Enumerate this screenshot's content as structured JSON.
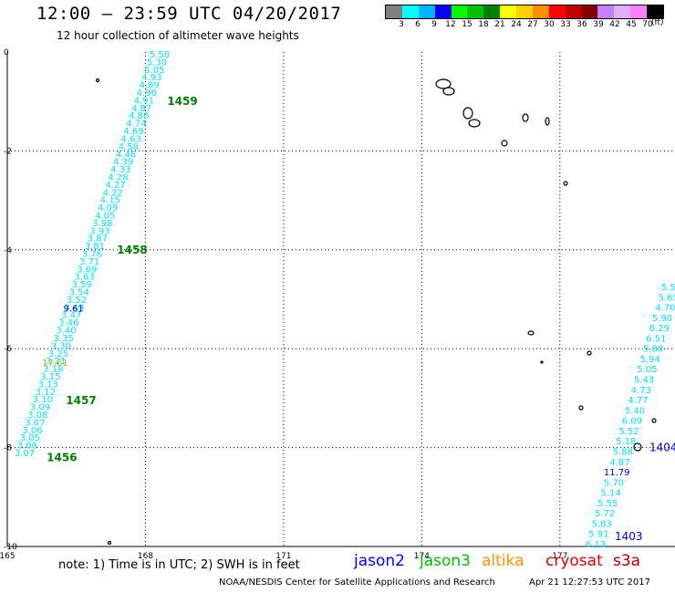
{
  "header": {
    "title": "12:00 – 23:59 UTC 04/20/2017",
    "subtitle": "12 hour collection of altimeter wave heights"
  },
  "legend": {
    "unit": "(ft)",
    "bins": [
      {
        "label": "3",
        "color": "#808080"
      },
      {
        "label": "6",
        "color": "#00ffff"
      },
      {
        "label": "9",
        "color": "#00b4ff"
      },
      {
        "label": "12",
        "color": "#0000ff"
      },
      {
        "label": "15",
        "color": "#00ff00"
      },
      {
        "label": "18",
        "color": "#00c000"
      },
      {
        "label": "21",
        "color": "#008000"
      },
      {
        "label": "24",
        "color": "#ffff00"
      },
      {
        "label": "27",
        "color": "#ffd000"
      },
      {
        "label": "30",
        "color": "#ff9000"
      },
      {
        "label": "33",
        "color": "#ff0000"
      },
      {
        "label": "36",
        "color": "#c00000"
      },
      {
        "label": "39",
        "color": "#800000"
      },
      {
        "label": "42",
        "color": "#c080ff"
      },
      {
        "label": "45",
        "color": "#e0b0ff"
      },
      {
        "label": "70",
        "color": "#ff80ff"
      },
      {
        "label": "",
        "color": "#000000"
      }
    ]
  },
  "map": {
    "lon_ticks": [
      "165",
      "168",
      "171",
      "174",
      "177"
    ],
    "lat_ticks": [
      "0",
      "-2",
      "-4",
      "-6",
      "-8",
      "-10"
    ],
    "lon_range": [
      165,
      179.5
    ],
    "lat_range": [
      0,
      -10
    ]
  },
  "track_west": {
    "color": "#00e0ff",
    "values": [
      "5.58",
      "5.30",
      "5.05",
      "4.93",
      "4.89",
      "4.96",
      "4.91",
      "4.87",
      "4.80",
      "4.74",
      "4.69",
      "4.63",
      "4.58",
      "4.46",
      "4.39",
      "4.33",
      "4.28",
      "4.27",
      "4.22",
      "4.15",
      "4.09",
      "4.05",
      "3.98",
      "3.93",
      "3.87",
      "3.81",
      "3.76",
      "3.71",
      "3.69",
      "3.63",
      "3.59",
      "3.54",
      "3.52",
      "3.49",
      "3.47",
      "3.46",
      "3.40",
      "3.35",
      "3.30",
      "3.25",
      "3.21",
      "3.18",
      "3.15",
      "3.13",
      "3.12",
      "3.10",
      "3.09",
      "3.08",
      "3.07",
      "3.06",
      "3.05",
      "3.06",
      "3.07"
    ],
    "specials": [
      {
        "value": "9.61",
        "color": "#0000cc",
        "lat": -5.25
      },
      {
        "value": "17.61",
        "color": "#b0b000",
        "lat": -6.35
      }
    ],
    "times": [
      {
        "value": "1459",
        "lat": -1.0
      },
      {
        "value": "1458",
        "lat": -4.0
      },
      {
        "value": "1457",
        "lat": -7.05
      },
      {
        "value": "1456",
        "lat": -8.2
      }
    ]
  },
  "track_east": {
    "color": "#00e0ff",
    "values": [
      "5.55",
      "5.65",
      "4.70",
      "5.90",
      "6.29",
      "6.51",
      "5.88",
      "5.94",
      "5.05",
      "5.43",
      "4.73",
      "4.77",
      "5.40",
      "6.09",
      "5.52",
      "5.18",
      "5.88",
      "4.87",
      "11.79",
      "5.70",
      "5.14",
      "5.55",
      "5.72",
      "5.83",
      "5.91",
      "6.13"
    ],
    "special_index": 18,
    "special_color": "#0000cc",
    "times": [
      {
        "value": "1404",
        "lat": -8.0
      },
      {
        "value": "1403",
        "lat": -9.8
      }
    ]
  },
  "islands": [
    {
      "name": "island-marker",
      "lon": 166.9,
      "lat": -0.55
    },
    {
      "name": "island-marker",
      "lon": 165.8,
      "lat": -9.9
    }
  ],
  "footer": {
    "note": "note: 1) Time is in UTC; 2) SWH is in feet",
    "satellites": [
      {
        "name": "jason2",
        "color": "#0000ff"
      },
      {
        "name": "jason3",
        "color": "#00c000"
      },
      {
        "name": "altika",
        "color": "#ff9000"
      },
      {
        "name": "cryosat",
        "color": "#e00000"
      },
      {
        "name": "s3a",
        "color": "#b00000"
      }
    ],
    "credit": "NOAA/NESDIS Center for Satellite Applications and Research",
    "timestamp": "Apr 21 12:27:53 UTC 2017"
  }
}
